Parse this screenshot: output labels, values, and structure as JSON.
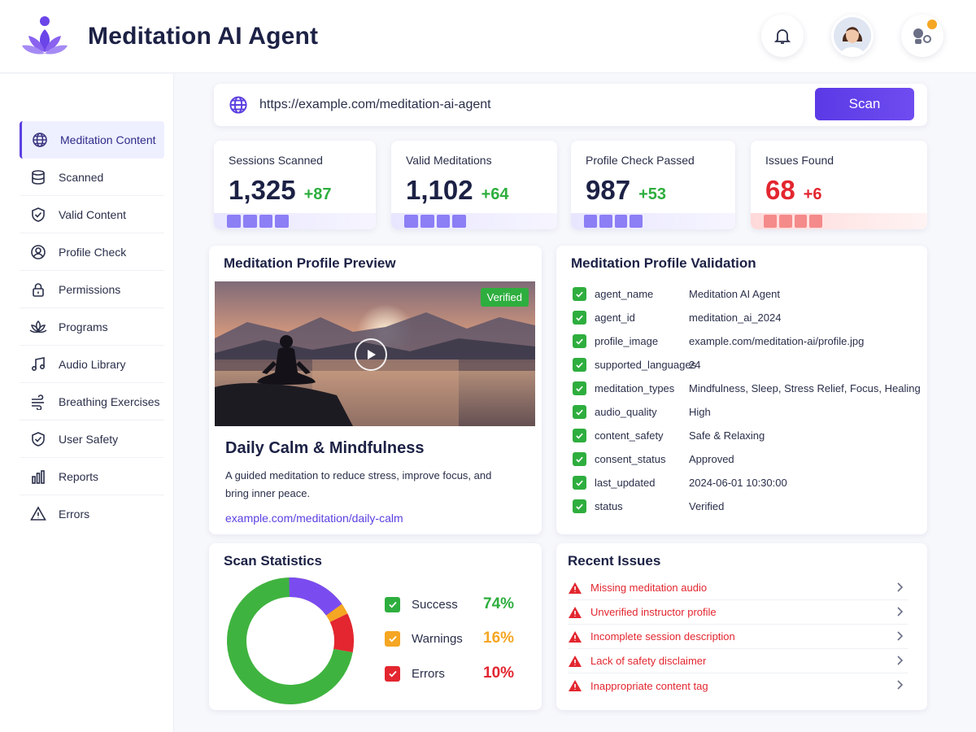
{
  "app": {
    "title": "Meditation AI Agent"
  },
  "colors": {
    "accent": "#5b3fe0",
    "success": "#2eae3e",
    "warning": "#f5a623",
    "error": "#e3262f"
  },
  "sidebar": {
    "items": [
      {
        "label": "Meditation Content",
        "icon": "globe-icon",
        "active": true
      },
      {
        "label": "Scanned",
        "icon": "database-icon"
      },
      {
        "label": "Valid Content",
        "icon": "shield-check-icon"
      },
      {
        "label": "Profile Check",
        "icon": "user-circle-icon"
      },
      {
        "label": "Permissions",
        "icon": "lock-icon"
      },
      {
        "label": "Programs",
        "icon": "lotus-icon"
      },
      {
        "label": "Audio Library",
        "icon": "music-note-icon"
      },
      {
        "label": "Breathing Exercises",
        "icon": "wind-icon"
      },
      {
        "label": "User Safety",
        "icon": "shield-check-icon"
      },
      {
        "label": "Reports",
        "icon": "bar-chart-icon"
      },
      {
        "label": "Errors",
        "icon": "warning-icon"
      }
    ]
  },
  "urlbar": {
    "value": "https://example.com/meditation-ai-agent",
    "scan_label": "Scan"
  },
  "stats": [
    {
      "label": "Sessions Scanned",
      "value": "1,325",
      "delta": "+87"
    },
    {
      "label": "Valid Meditations",
      "value": "1,102",
      "delta": "+64"
    },
    {
      "label": "Profile Check Passed",
      "value": "987",
      "delta": "+53"
    },
    {
      "label": "Issues Found",
      "value": "68",
      "delta": "+6"
    }
  ],
  "preview": {
    "section_title": "Meditation Profile Preview",
    "badge": "Verified",
    "title": "Daily Calm & Mindfulness",
    "description": "A guided meditation to reduce stress, improve focus, and bring inner peace.",
    "link": "example.com/meditation/daily-calm"
  },
  "validation": {
    "section_title": "Meditation Profile Validation",
    "rows": [
      {
        "key": "agent_name",
        "value": "Meditation AI Agent"
      },
      {
        "key": "agent_id",
        "value": "meditation_ai_2024"
      },
      {
        "key": "profile_image",
        "value": "example.com/meditation-ai/profile.jpg"
      },
      {
        "key": "supported_languages",
        "value": "24"
      },
      {
        "key": "meditation_types",
        "value": "Mindfulness, Sleep, Stress Relief, Focus, Healing"
      },
      {
        "key": "audio_quality",
        "value": "High"
      },
      {
        "key": "content_safety",
        "value": "Safe & Relaxing"
      },
      {
        "key": "consent_status",
        "value": "Approved"
      },
      {
        "key": "last_updated",
        "value": "2024-06-01 10:30:00"
      },
      {
        "key": "status",
        "value": "Verified"
      }
    ]
  },
  "scan_stats": {
    "section_title": "Scan Statistics",
    "legend": [
      {
        "name": "Success",
        "pct": "74%"
      },
      {
        "name": "Warnings",
        "pct": "16%"
      },
      {
        "name": "Errors",
        "pct": "10%"
      }
    ]
  },
  "chart_data": {
    "type": "pie",
    "categories": [
      "Success",
      "Warnings",
      "Errors"
    ],
    "values": [
      74,
      16,
      10
    ],
    "colors": [
      "#3fb33f",
      "#f5a623",
      "#e3262f"
    ],
    "title": "Scan Statistics"
  },
  "issues": {
    "section_title": "Recent Issues",
    "items": [
      "Missing meditation audio",
      "Unverified instructor profile",
      "Incomplete session description",
      "Lack of safety disclaimer",
      "Inappropriate content tag"
    ]
  }
}
